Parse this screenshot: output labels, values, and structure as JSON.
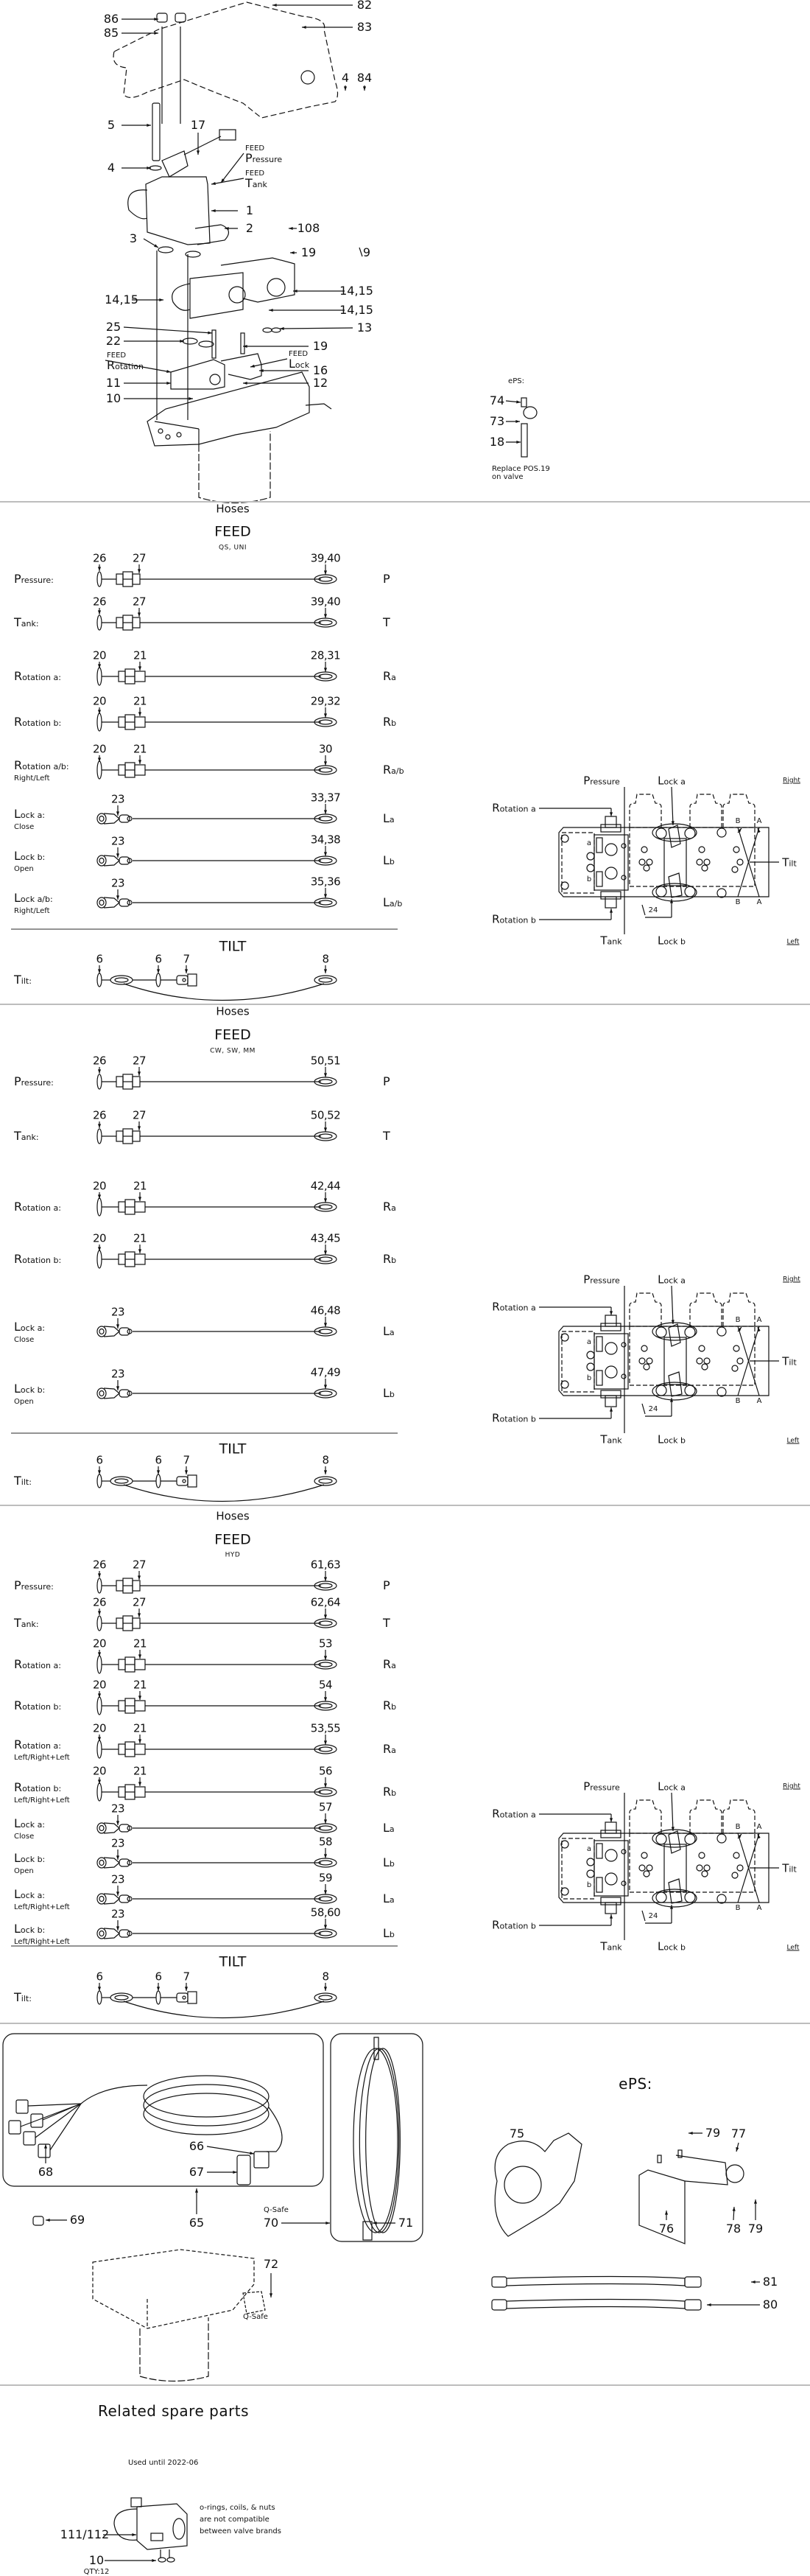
{
  "assembly": {
    "callouts": [
      "86",
      "85",
      "82",
      "83",
      "4",
      "84",
      "5",
      "17",
      "4",
      "1",
      "2",
      "108",
      "3",
      "19",
      "9",
      "14,15",
      "14,15",
      "14,15",
      "13",
      "25",
      "22",
      "19",
      "16",
      "11",
      "12",
      "10"
    ],
    "port_notes": [
      {
        "line1": "FEED",
        "line2": "Pressure"
      },
      {
        "line1": "FEED",
        "line2": "Tank"
      },
      {
        "line1": "FEED",
        "line2": "Rotation"
      },
      {
        "line1": "FEED",
        "line2": "Lock"
      }
    ],
    "eps": {
      "title": "ePS:",
      "callouts": [
        "74",
        "73",
        "18"
      ],
      "note_line1": "Replace POS.19",
      "note_line2": "on valve"
    }
  },
  "hose_sections": [
    {
      "title": "Hoses",
      "feed": "FEED",
      "variant": "QS, UNI",
      "rows": [
        {
          "label": "Pressure:",
          "sub": "",
          "type": "small",
          "parts": [
            "26",
            "27"
          ],
          "end": "39,40",
          "port": "P"
        },
        {
          "label": "Tank:",
          "sub": "",
          "type": "small",
          "parts": [
            "26",
            "27"
          ],
          "end": "39,40",
          "port": "T"
        },
        {
          "label": "Rotation a:",
          "sub": "",
          "type": "rot",
          "parts": [
            "20",
            "21"
          ],
          "end": "28,31",
          "port": "Ra"
        },
        {
          "label": "Rotation b:",
          "sub": "",
          "type": "rot",
          "parts": [
            "20",
            "21"
          ],
          "end": "29,32",
          "port": "Rb"
        },
        {
          "label": "Rotation a/b:",
          "sub": "Right/Left",
          "type": "rot",
          "parts": [
            "20",
            "21"
          ],
          "end": "30",
          "port": "Ra/b"
        },
        {
          "label": "Lock a:",
          "sub": "Close",
          "type": "lock",
          "parts": [
            "23"
          ],
          "end": "33,37",
          "port": "La"
        },
        {
          "label": "Lock b:",
          "sub": "Open",
          "type": "lock",
          "parts": [
            "23"
          ],
          "end": "34,38",
          "port": "Lb"
        },
        {
          "label": "Lock a/b:",
          "sub": "Right/Left",
          "type": "lock",
          "parts": [
            "23"
          ],
          "end": "35,36",
          "port": "La/b"
        }
      ],
      "tilt_title": "TILT",
      "tilt_label": "Tilt:",
      "tilt_parts": [
        "6",
        "6",
        "7",
        "8"
      ]
    },
    {
      "title": "Hoses",
      "feed": "FEED",
      "variant": "CW, SW, MM",
      "rows": [
        {
          "label": "Pressure:",
          "sub": "",
          "type": "small",
          "parts": [
            "26",
            "27"
          ],
          "end": "50,51",
          "port": "P"
        },
        {
          "label": "Tank:",
          "sub": "",
          "type": "small",
          "parts": [
            "26",
            "27"
          ],
          "end": "50,52",
          "port": "T"
        },
        {
          "label": "Rotation a:",
          "sub": "",
          "type": "rot",
          "parts": [
            "20",
            "21"
          ],
          "end": "42,44",
          "port": "Ra"
        },
        {
          "label": "Rotation b:",
          "sub": "",
          "type": "rot",
          "parts": [
            "20",
            "21"
          ],
          "end": "43,45",
          "port": "Rb"
        },
        {
          "label": "Lock a:",
          "sub": "Close",
          "type": "lock",
          "parts": [
            "23"
          ],
          "end": "46,48",
          "port": "La"
        },
        {
          "label": "Lock b:",
          "sub": "Open",
          "type": "lock",
          "parts": [
            "23"
          ],
          "end": "47,49",
          "port": "Lb"
        }
      ],
      "tilt_title": "TILT",
      "tilt_label": "Tilt:",
      "tilt_parts": [
        "6",
        "6",
        "7",
        "8"
      ]
    },
    {
      "title": "Hoses",
      "feed": "FEED",
      "variant": "HYD",
      "rows": [
        {
          "label": "Pressure:",
          "sub": "",
          "type": "small",
          "parts": [
            "26",
            "27"
          ],
          "end": "61,63",
          "port": "P"
        },
        {
          "label": "Tank:",
          "sub": "",
          "type": "small",
          "parts": [
            "26",
            "27"
          ],
          "end": "62,64",
          "port": "T"
        },
        {
          "label": "Rotation a:",
          "sub": "",
          "type": "rot",
          "parts": [
            "20",
            "21"
          ],
          "end": "53",
          "port": "Ra"
        },
        {
          "label": "Rotation b:",
          "sub": "",
          "type": "rot",
          "parts": [
            "20",
            "21"
          ],
          "end": "54",
          "port": "Rb"
        },
        {
          "label": "Rotation a:",
          "sub": "Left/Right+Left",
          "type": "rot",
          "parts": [
            "20",
            "21"
          ],
          "end": "53,55",
          "port": "Ra"
        },
        {
          "label": "Rotation b:",
          "sub": "Left/Right+Left",
          "type": "rot",
          "parts": [
            "20",
            "21"
          ],
          "end": "56",
          "port": "Rb"
        },
        {
          "label": "Lock a:",
          "sub": "Close",
          "type": "lock",
          "parts": [
            "23"
          ],
          "end": "57",
          "port": "La"
        },
        {
          "label": "Lock b:",
          "sub": "Open",
          "type": "lock",
          "parts": [
            "23"
          ],
          "end": "58",
          "port": "Lb"
        },
        {
          "label": "Lock a:",
          "sub": "Left/Right+Left",
          "type": "lock",
          "parts": [
            "23"
          ],
          "end": "59",
          "port": "La"
        },
        {
          "label": "Lock b:",
          "sub": "Left/Right+Left",
          "type": "lock",
          "parts": [
            "23"
          ],
          "end": "58,60",
          "port": "Lb"
        }
      ],
      "tilt_title": "TILT",
      "tilt_label": "Tilt:",
      "tilt_parts": [
        "6",
        "6",
        "7",
        "8"
      ]
    }
  ],
  "valve_diagram": {
    "pressure": "Pressure",
    "lock_a": "Lock a",
    "right": "Right",
    "rotation_a": "Rotation a",
    "port_b": "B",
    "port_a": "A",
    "tilt": "Tilt",
    "tool": "24",
    "rotation_b": "Rotation b",
    "tank": "Tank",
    "lock_b": "Lock b",
    "left": "Left",
    "inner_a": "a",
    "inner_b": "b"
  },
  "accessories": {
    "callouts": [
      "68",
      "66",
      "67",
      "65",
      "69",
      "70",
      "71",
      "72",
      "75",
      "79",
      "77",
      "76",
      "78",
      "79",
      "81",
      "80"
    ],
    "q_safe": "Q-Safe",
    "q_safe_small": "Q-Safe",
    "eps_title": "ePS:"
  },
  "related": {
    "title": "Related spare parts",
    "used_until": "Used until 2022-06",
    "callouts": [
      "111/112",
      "10"
    ],
    "qty": "QTY:12",
    "note": [
      "o-rings, coils, & nuts",
      "are not compatible",
      "between valve brands"
    ]
  }
}
